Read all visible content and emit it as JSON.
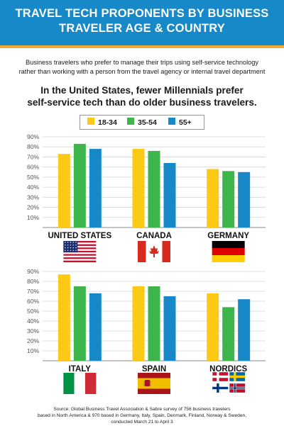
{
  "header": {
    "title_line1": "TRAVEL TECH PROPONENTS BY BUSINESS",
    "title_line2": "TRAVELER AGE & COUNTRY"
  },
  "subtitle": {
    "line1": "Business travelers who prefer to manage their trips using self-service technology",
    "line2": "rather than working with a person from the travel agency or internal travel department"
  },
  "headline": {
    "line1": "In the United States, fewer Millennials prefer",
    "line2": "self-service tech than do older business travelers."
  },
  "source": {
    "line1": "Source: Global Business Travel Association & Sabre survey of 756 business travelers",
    "line2": "based in North America & 970 based in Germany, Italy, Spain, Denmark, Finland, Norway & Sweden,",
    "line3": "conducted March 21 to April 3"
  },
  "colors": {
    "s1": "#fcc917",
    "s2": "#3db54a",
    "s3": "#1788c8"
  },
  "flags": [
    "us-flag",
    "canada-flag",
    "germany-flag",
    "italy-flag",
    "spain-flag",
    "nordic-flags"
  ],
  "chart_data": [
    {
      "type": "bar",
      "categories": [
        "UNITED STATES",
        "CANADA",
        "GERMANY"
      ],
      "series": [
        {
          "name": "18-34",
          "values": [
            73,
            78,
            58
          ]
        },
        {
          "name": "35-54",
          "values": [
            83,
            76,
            56
          ]
        },
        {
          "name": "55+",
          "values": [
            78,
            64,
            55
          ]
        }
      ],
      "yticks": [
        "10%",
        "20%",
        "30%",
        "40%",
        "50%",
        "60%",
        "70%",
        "80%",
        "90%"
      ],
      "ylim": [
        0,
        90
      ],
      "grid": true,
      "legend": "top-center"
    },
    {
      "type": "bar",
      "categories": [
        "ITALY",
        "SPAIN",
        "NORDICS"
      ],
      "series": [
        {
          "name": "18-34",
          "values": [
            87,
            75,
            68
          ]
        },
        {
          "name": "35-54",
          "values": [
            75,
            75,
            54
          ]
        },
        {
          "name": "55+",
          "values": [
            68,
            65,
            62
          ]
        }
      ],
      "yticks": [
        "10%",
        "20%",
        "30%",
        "40%",
        "50%",
        "60%",
        "70%",
        "80%",
        "90%"
      ],
      "ylim": [
        0,
        90
      ],
      "grid": true
    }
  ]
}
